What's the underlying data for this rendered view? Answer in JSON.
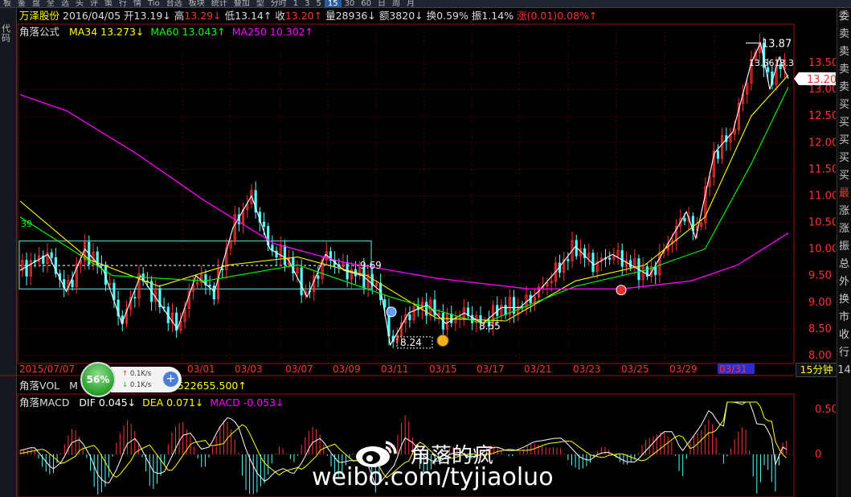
{
  "toolbar": {
    "items": [
      "板",
      "鉴",
      "盘",
      "全",
      "选",
      "头",
      "评",
      "策",
      "行",
      "情",
      "Tio",
      "台选",
      "板块",
      "统计",
      "叠加",
      "型",
      "分时",
      "1",
      "3",
      "5",
      "15",
      "30",
      "60",
      "日",
      "周",
      "月"
    ],
    "active_item": "15"
  },
  "left_tab": "代码",
  "header": {
    "stock_name": "万泽股份",
    "date": "2016/04/05",
    "open_label": "开",
    "open_value": "13.19↓",
    "high_label": "高",
    "high_value": "13.29↓",
    "low_label": "低",
    "low_value": "13.14↑",
    "close_label": "收",
    "close_value": "13.20↑",
    "volume_label": "量",
    "volume_value": "28936↓",
    "amount_label": "额",
    "amount_value": "3820↓",
    "turnover_label": "换",
    "turnover_value": "0.59%",
    "amplitude_label": "振",
    "amplitude_value": "1.14%",
    "change_label": "涨",
    "change_value": "(0.01)",
    "change_pct": "0.08%↑"
  },
  "ma_legend": {
    "name": "角落公式",
    "ma34": "MA34 13.273↓",
    "ma60": "MA60 13.043↑",
    "ma250": "MA250 10.302↑"
  },
  "vol_legend": {
    "name": "角落VOL",
    "ma_prefix": "M",
    "value": "2522655.500↑"
  },
  "macd_legend": {
    "name": "角落MACD",
    "dif": "DIF 0.045↓",
    "dea": "DEA 0.071↓",
    "macd": "MACD -0.053↓"
  },
  "period": "15分钟",
  "current_price_tag": "13.20",
  "annotations": {
    "high_price": "13.87",
    "top_cluster": "13.5613.3",
    "mid_level": "9.69",
    "low_box": "8.24",
    "low_level": "8.55",
    "left_marker": "39"
  },
  "float_widget": {
    "percent": "56%",
    "up_speed": "0.1K/s",
    "down_speed": "0.1K/s"
  },
  "watermark": {
    "name": "角落的疯",
    "url": "weibo.com/tyjiaoluo"
  },
  "right_strip_chars": [
    "委",
    "卖",
    "卖",
    "卖",
    "卖",
    "买",
    "买",
    "买",
    "买",
    "买",
    "最",
    "涨",
    "涨",
    "振",
    "总",
    "外",
    "换",
    "市",
    "收",
    "行",
    "14"
  ],
  "colors": {
    "up": "#ff3232",
    "down": "#54ffff",
    "ma34": "#ffff00",
    "ma60": "#00ff00",
    "ma250": "#ff00ff",
    "dif": "#ffffff",
    "dea": "#ffff00",
    "grid": "#8b0000",
    "axis_text": "#ff3232"
  },
  "chart_data": {
    "type": "candlestick",
    "y_ticks": [
      "13.50",
      "13.00",
      "12.50",
      "12.00",
      "11.50",
      "11.00",
      "10.50",
      "10.00",
      "9.50",
      "9.00",
      "8.50",
      "8.00"
    ],
    "y_range": [
      8.0,
      13.5
    ],
    "x_labels": [
      "2015/07/07",
      "03/01",
      "03/03",
      "03/07",
      "03/09",
      "03/11",
      "03/15",
      "03/17",
      "03/21",
      "03/23",
      "03/25",
      "03/29",
      "03/31"
    ],
    "x_label_highlight": "03/31",
    "macd_ticks": [
      "0.50",
      "0"
    ],
    "price_path": [
      [
        0,
        9.6
      ],
      [
        6,
        9.9
      ],
      [
        10,
        9.2
      ],
      [
        14,
        10.0
      ],
      [
        18,
        9.6
      ],
      [
        22,
        8.6
      ],
      [
        26,
        9.5
      ],
      [
        30,
        9.0
      ],
      [
        34,
        8.5
      ],
      [
        38,
        9.5
      ],
      [
        42,
        9.2
      ],
      [
        46,
        10.4
      ],
      [
        50,
        11.0
      ],
      [
        54,
        10.0
      ],
      [
        58,
        9.8
      ],
      [
        62,
        9.1
      ],
      [
        66,
        9.9
      ],
      [
        70,
        9.6
      ],
      [
        74,
        9.5
      ],
      [
        78,
        9.2
      ],
      [
        80,
        8.2
      ],
      [
        84,
        8.8
      ],
      [
        88,
        8.95
      ],
      [
        92,
        8.6
      ],
      [
        96,
        8.8
      ],
      [
        100,
        8.6
      ],
      [
        104,
        8.9
      ],
      [
        108,
        8.9
      ],
      [
        112,
        9.2
      ],
      [
        116,
        9.6
      ],
      [
        120,
        10.05
      ],
      [
        124,
        9.7
      ],
      [
        128,
        9.9
      ],
      [
        132,
        9.7
      ],
      [
        136,
        9.5
      ],
      [
        140,
        10.1
      ],
      [
        144,
        10.7
      ],
      [
        146,
        10.2
      ],
      [
        150,
        11.8
      ],
      [
        154,
        12.2
      ],
      [
        158,
        13.5
      ],
      [
        160,
        13.87
      ],
      [
        162,
        13.0
      ],
      [
        164,
        13.6
      ],
      [
        166,
        13.2
      ]
    ],
    "ma34": [
      [
        0,
        10.9
      ],
      [
        15,
        9.8
      ],
      [
        30,
        9.3
      ],
      [
        45,
        9.7
      ],
      [
        60,
        9.85
      ],
      [
        75,
        9.5
      ],
      [
        90,
        8.7
      ],
      [
        105,
        8.65
      ],
      [
        120,
        9.4
      ],
      [
        135,
        9.7
      ],
      [
        148,
        10.6
      ],
      [
        158,
        12.5
      ],
      [
        166,
        13.27
      ]
    ],
    "ma60": [
      [
        0,
        10.6
      ],
      [
        20,
        9.5
      ],
      [
        40,
        9.4
      ],
      [
        60,
        9.7
      ],
      [
        80,
        9.1
      ],
      [
        100,
        8.6
      ],
      [
        120,
        9.3
      ],
      [
        135,
        9.6
      ],
      [
        148,
        10.0
      ],
      [
        158,
        11.6
      ],
      [
        166,
        13.04
      ]
    ],
    "ma250": [
      [
        0,
        12.9
      ],
      [
        10,
        12.6
      ],
      [
        25,
        11.8
      ],
      [
        40,
        10.9
      ],
      [
        55,
        10.1
      ],
      [
        70,
        9.75
      ],
      [
        90,
        9.45
      ],
      [
        110,
        9.25
      ],
      [
        130,
        9.25
      ],
      [
        145,
        9.4
      ],
      [
        155,
        9.7
      ],
      [
        166,
        10.3
      ]
    ]
  }
}
